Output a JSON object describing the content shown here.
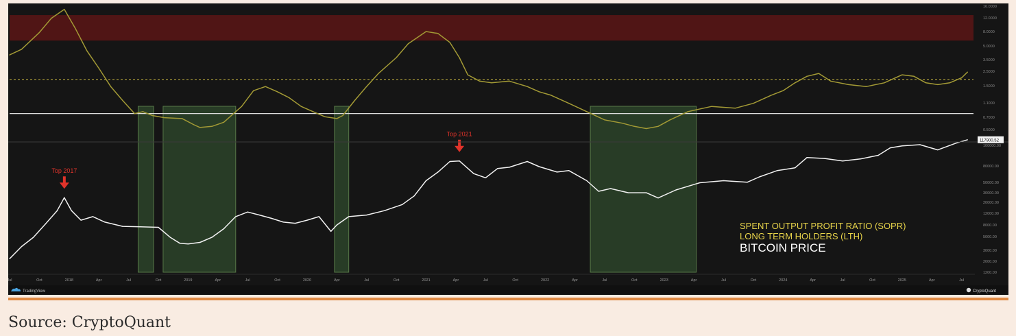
{
  "chart_data": {
    "type": "line",
    "panels": [
      {
        "name": "sopr",
        "scale": "log",
        "ylim": [
          0.5,
          16
        ],
        "yticks": [
          "16.0000",
          "12.0000",
          "8.0000",
          "5.0000",
          "3.5000",
          "2.5000",
          "1.5000",
          "1.1000",
          "0.7000",
          "0.5000",
          "0.3600"
        ],
        "reference_lines": [
          {
            "value": 1.0,
            "style": "solid",
            "color": "#dddddd"
          },
          {
            "value": 2.4,
            "style": "dashed",
            "color": "#c8b840"
          }
        ],
        "zone": {
          "from": 6.5,
          "to": 12.5,
          "color": "#5b1515"
        },
        "series": [
          {
            "name": "SPENT OUTPUT PROFIT RATIO (SOPR) LONG TERM HOLDERS (LTH)",
            "color": "#a39a35",
            "x": [
              2017.5,
              2017.6,
              2017.75,
              2017.85,
              2017.96,
              2018.05,
              2018.15,
              2018.25,
              2018.35,
              2018.45,
              2018.55,
              2018.62,
              2018.7,
              2018.8,
              2018.95,
              2019.05,
              2019.1,
              2019.2,
              2019.3,
              2019.45,
              2019.55,
              2019.65,
              2019.75,
              2019.85,
              2019.95,
              2020.05,
              2020.15,
              2020.25,
              2020.3,
              2020.4,
              2020.5,
              2020.6,
              2020.75,
              2020.85,
              2021.0,
              2021.1,
              2021.2,
              2021.28,
              2021.35,
              2021.45,
              2021.55,
              2021.7,
              2021.85,
              2021.95,
              2022.05,
              2022.2,
              2022.35,
              2022.5,
              2022.65,
              2022.75,
              2022.85,
              2022.95,
              2023.05,
              2023.2,
              2023.4,
              2023.6,
              2023.75,
              2023.9,
              2024.0,
              2024.1,
              2024.2,
              2024.3,
              2024.4,
              2024.55,
              2024.7,
              2024.85,
              2025.0,
              2025.1,
              2025.2,
              2025.3,
              2025.4,
              2025.5,
              2025.55
            ],
            "y": [
              4.5,
              5.2,
              8.0,
              11.5,
              14.5,
              9.0,
              5.0,
              3.2,
              2.0,
              1.4,
              1.0,
              1.05,
              0.95,
              0.9,
              0.88,
              0.75,
              0.7,
              0.72,
              0.8,
              1.2,
              1.8,
              2.0,
              1.75,
              1.5,
              1.2,
              1.05,
              0.92,
              0.88,
              0.95,
              1.4,
              2.0,
              2.8,
              4.2,
              6.0,
              8.2,
              7.8,
              6.2,
              4.2,
              2.7,
              2.3,
              2.2,
              2.3,
              2.0,
              1.75,
              1.6,
              1.3,
              1.05,
              0.85,
              0.78,
              0.72,
              0.68,
              0.72,
              0.85,
              1.05,
              1.2,
              1.15,
              1.3,
              1.6,
              1.8,
              2.2,
              2.6,
              2.8,
              2.3,
              2.1,
              2.0,
              2.2,
              2.7,
              2.6,
              2.2,
              2.1,
              2.2,
              2.5,
              2.9
            ]
          }
        ]
      },
      {
        "name": "price",
        "scale": "log",
        "ylim": [
          1400,
          100000
        ],
        "yticks": [
          "100000.00",
          "80000.00",
          "50000.00",
          "30000.00",
          "20000.00",
          "12000.00",
          "8000.00",
          "5000.00",
          "3000.00",
          "2000.00",
          "1200.00"
        ],
        "last_value_label": "117900.52",
        "series": [
          {
            "name": "BITCOIN PRICE",
            "color": "#f2f2f2",
            "x": [
              2017.5,
              2017.6,
              2017.7,
              2017.8,
              2017.9,
              2017.96,
              2018.02,
              2018.1,
              2018.2,
              2018.3,
              2018.45,
              2018.6,
              2018.75,
              2018.85,
              2018.93,
              2019.0,
              2019.1,
              2019.2,
              2019.3,
              2019.4,
              2019.5,
              2019.6,
              2019.7,
              2019.8,
              2019.9,
              2020.0,
              2020.1,
              2020.2,
              2020.25,
              2020.35,
              2020.5,
              2020.65,
              2020.8,
              2020.9,
              2021.0,
              2021.1,
              2021.2,
              2021.28,
              2021.4,
              2021.5,
              2021.6,
              2021.7,
              2021.85,
              2021.95,
              2022.1,
              2022.2,
              2022.35,
              2022.45,
              2022.55,
              2022.7,
              2022.85,
              2022.95,
              2023.1,
              2023.3,
              2023.5,
              2023.7,
              2023.8,
              2023.95,
              2024.1,
              2024.2,
              2024.35,
              2024.5,
              2024.65,
              2024.8,
              2024.9,
              2025.0,
              2025.15,
              2025.3,
              2025.45,
              2025.55
            ],
            "y": [
              2200,
              3300,
              4500,
              7000,
              11000,
              17000,
              11000,
              8000,
              9000,
              7500,
              6500,
              6400,
              6300,
              4500,
              3700,
              3600,
              3800,
              4500,
              6000,
              9000,
              10500,
              9500,
              8500,
              7500,
              7200,
              8000,
              9000,
              5500,
              6800,
              9000,
              9500,
              11000,
              13500,
              18000,
              30000,
              40000,
              57000,
              58000,
              38000,
              33000,
              45000,
              47000,
              57000,
              48000,
              40000,
              42000,
              30000,
              21000,
              23000,
              20000,
              20000,
              16800,
              22000,
              28000,
              30000,
              28500,
              34000,
              42000,
              46000,
              65000,
              63000,
              58000,
              62000,
              70000,
              90000,
              96000,
              100000,
              84000,
              105000,
              117900
            ]
          }
        ]
      }
    ],
    "shaded_regions": [
      {
        "from": 2018.58,
        "to": 2018.71
      },
      {
        "from": 2018.79,
        "to": 2019.4
      },
      {
        "from": 2020.23,
        "to": 2020.35
      },
      {
        "from": 2022.38,
        "to": 2023.27
      }
    ],
    "annotations": [
      {
        "label": "Top 2017",
        "x": 2017.96,
        "y": 17000,
        "color": "#e0332a"
      },
      {
        "label": "Top 2021",
        "x": 2021.28,
        "y": 58000,
        "color": "#e0332a"
      }
    ],
    "x_ticks": [
      {
        "x": 2017.5,
        "label": "Jul"
      },
      {
        "x": 2017.75,
        "label": "Oct"
      },
      {
        "x": 2018.0,
        "label": "2018"
      },
      {
        "x": 2018.25,
        "label": "Apr"
      },
      {
        "x": 2018.5,
        "label": "Jul"
      },
      {
        "x": 2018.75,
        "label": "Oct"
      },
      {
        "x": 2019.0,
        "label": "2019"
      },
      {
        "x": 2019.25,
        "label": "Apr"
      },
      {
        "x": 2019.5,
        "label": "Jul"
      },
      {
        "x": 2019.75,
        "label": "Oct"
      },
      {
        "x": 2020.0,
        "label": "2020"
      },
      {
        "x": 2020.25,
        "label": "Apr"
      },
      {
        "x": 2020.5,
        "label": "Jul"
      },
      {
        "x": 2020.75,
        "label": "Oct"
      },
      {
        "x": 2021.0,
        "label": "2021"
      },
      {
        "x": 2021.25,
        "label": "Apr"
      },
      {
        "x": 2021.5,
        "label": "Jul"
      },
      {
        "x": 2021.75,
        "label": "Oct"
      },
      {
        "x": 2022.0,
        "label": "2022"
      },
      {
        "x": 2022.25,
        "label": "Apr"
      },
      {
        "x": 2022.5,
        "label": "Jul"
      },
      {
        "x": 2022.75,
        "label": "Oct"
      },
      {
        "x": 2023.0,
        "label": "2023"
      },
      {
        "x": 2023.25,
        "label": "Apr"
      },
      {
        "x": 2023.5,
        "label": "Jul"
      },
      {
        "x": 2023.75,
        "label": "Oct"
      },
      {
        "x": 2024.0,
        "label": "2024"
      },
      {
        "x": 2024.25,
        "label": "Apr"
      },
      {
        "x": 2024.5,
        "label": "Jul"
      },
      {
        "x": 2024.75,
        "label": "Oct"
      },
      {
        "x": 2025.0,
        "label": "2025"
      },
      {
        "x": 2025.25,
        "label": "Apr"
      },
      {
        "x": 2025.5,
        "label": "Jul"
      }
    ],
    "xlim": [
      2017.5,
      2025.6
    ],
    "legend": {
      "placement": "bottom-right",
      "lines": [
        {
          "text": "SPENT OUTPUT PROFIT RATIO (SOPR)",
          "color": "#e8d44a"
        },
        {
          "text": "LONG TERM HOLDERS (LTH)",
          "color": "#e8d44a"
        },
        {
          "text": "BITCOIN PRICE",
          "color": "#ffffff"
        }
      ]
    },
    "colors": {
      "background": "#151515",
      "shade": "#2f4a2c",
      "shade_edge": "#6f9b5a"
    }
  },
  "footer": {
    "tradingview_label": "TradingView",
    "cryptoquant_label": "CryptoQuant"
  },
  "caption": "Source: CryptoQuant"
}
